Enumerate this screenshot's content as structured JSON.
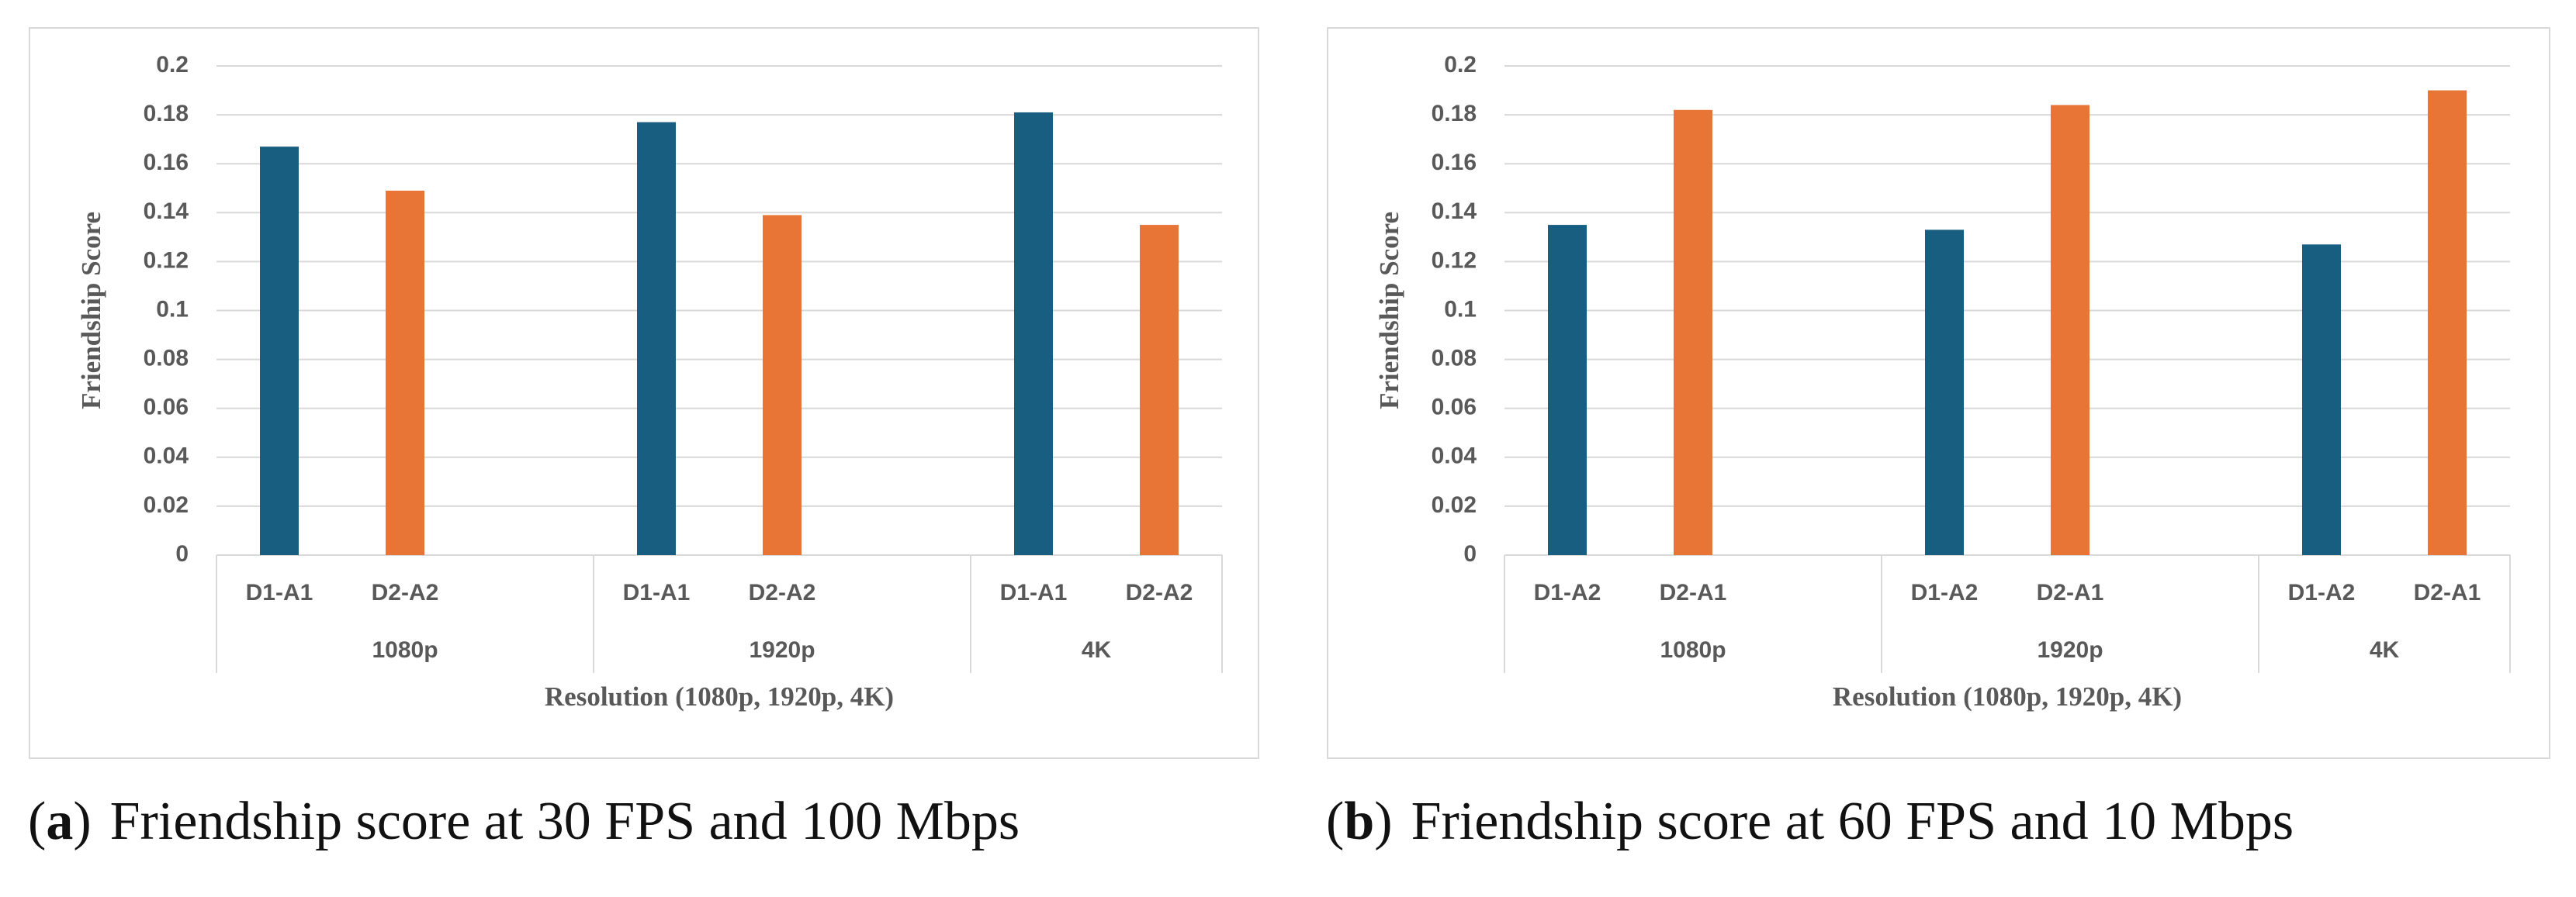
{
  "chart_data": [
    {
      "type": "bar",
      "caption": {
        "open": "(",
        "label": "a",
        "close": ")",
        "text": "Friendship score at 30 FPS and 100 Mbps"
      },
      "x_label": "Resolution (1080p, 1920p, 4K)",
      "y_label": "Friendship Score",
      "categories": [
        "D1-A1",
        "D2-A2",
        null,
        "D1-A1",
        "D2-A2",
        null,
        "D1-A1",
        "D2-A2"
      ],
      "group_labels": [
        "1080p",
        "1920p",
        "4K"
      ],
      "group_sizes": [
        3,
        3,
        2
      ],
      "values": [
        0.167,
        0.149,
        null,
        0.177,
        0.139,
        null,
        0.181,
        0.135
      ],
      "colors": [
        "#185e80",
        "#e87435",
        null,
        "#185e80",
        "#e87435",
        null,
        "#185e80",
        "#e87435"
      ],
      "ylim": [
        0,
        0.2
      ],
      "yticks": [
        0,
        0.02,
        0.04,
        0.06,
        0.08,
        0.1,
        0.12,
        0.14,
        0.16,
        0.18,
        0.2
      ],
      "grid": true
    },
    {
      "type": "bar",
      "caption": {
        "open": "(",
        "label": "b",
        "close": ")",
        "text": "Friendship score at 60 FPS and 10 Mbps"
      },
      "x_label": "Resolution (1080p, 1920p, 4K)",
      "y_label": "Friendship Score",
      "categories": [
        "D1-A2",
        "D2-A1",
        null,
        "D1-A2",
        "D2-A1",
        null,
        "D1-A2",
        "D2-A1"
      ],
      "group_labels": [
        "1080p",
        "1920p",
        "4K"
      ],
      "group_sizes": [
        3,
        3,
        2
      ],
      "values": [
        0.135,
        0.182,
        null,
        0.133,
        0.184,
        null,
        0.127,
        0.19
      ],
      "colors": [
        "#185e80",
        "#e87435",
        null,
        "#185e80",
        "#e87435",
        null,
        "#185e80",
        "#e87435"
      ],
      "ylim": [
        0,
        0.2
      ],
      "yticks": [
        0,
        0.02,
        0.04,
        0.06,
        0.08,
        0.1,
        0.12,
        0.14,
        0.16,
        0.18,
        0.2
      ],
      "grid": true
    }
  ]
}
